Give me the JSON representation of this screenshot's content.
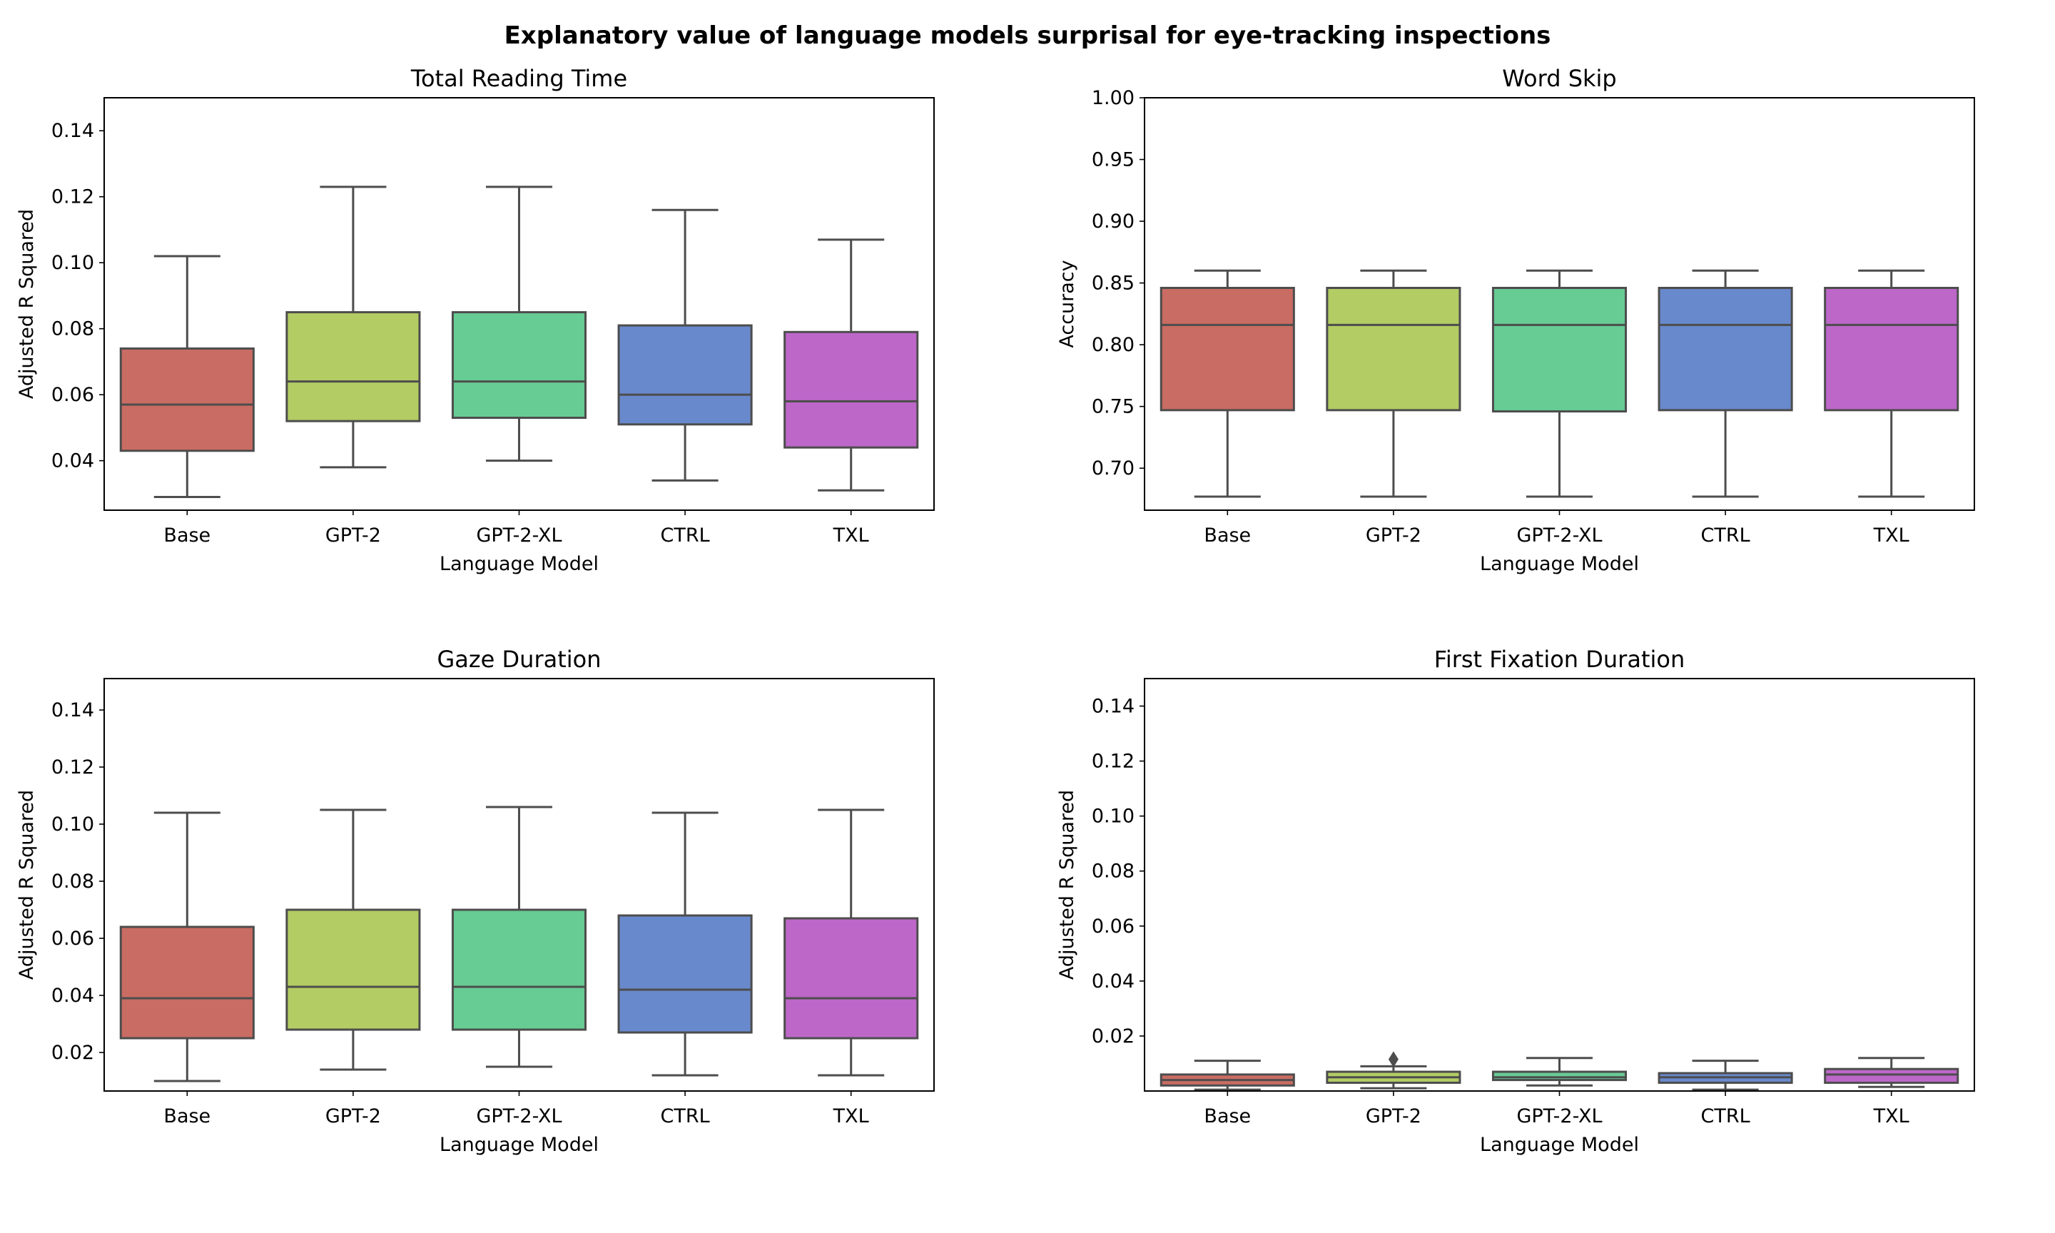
{
  "figure": {
    "title": "Explanatory value of  language models surprisal for eye-tracking inspections"
  },
  "colors": {
    "Base": "#c96c63",
    "GPT-2": "#b3cc64",
    "GPT-2-XL": "#67cb94",
    "CTRL": "#6889cc",
    "TXL": "#bd67c9",
    "line": "#4d4d4d"
  },
  "chart_data": [
    {
      "type": "box",
      "title": "Total Reading Time",
      "xlabel": "Language Model",
      "ylabel": "Adjusted R Squared",
      "categories": [
        "Base",
        "GPT-2",
        "GPT-2-XL",
        "CTRL",
        "TXL"
      ],
      "ylim": [
        0.025,
        0.15
      ],
      "yticks": [
        0.04,
        0.06,
        0.08,
        0.1,
        0.12,
        0.14
      ],
      "ytick_labels": [
        "0.04",
        "0.06",
        "0.08",
        "0.10",
        "0.12",
        "0.14"
      ],
      "boxes": [
        {
          "category": "Base",
          "whisker_low": 0.029,
          "q1": 0.043,
          "median": 0.057,
          "q3": 0.074,
          "whisker_high": 0.102
        },
        {
          "category": "GPT-2",
          "whisker_low": 0.038,
          "q1": 0.052,
          "median": 0.064,
          "q3": 0.085,
          "whisker_high": 0.123
        },
        {
          "category": "GPT-2-XL",
          "whisker_low": 0.04,
          "q1": 0.053,
          "median": 0.064,
          "q3": 0.085,
          "whisker_high": 0.123
        },
        {
          "category": "CTRL",
          "whisker_low": 0.034,
          "q1": 0.051,
          "median": 0.06,
          "q3": 0.081,
          "whisker_high": 0.116
        },
        {
          "category": "TXL",
          "whisker_low": 0.031,
          "q1": 0.044,
          "median": 0.058,
          "q3": 0.079,
          "whisker_high": 0.107
        }
      ]
    },
    {
      "type": "box",
      "title": "Word Skip",
      "xlabel": "Language Model",
      "ylabel": "Accuracy",
      "categories": [
        "Base",
        "GPT-2",
        "GPT-2-XL",
        "CTRL",
        "TXL"
      ],
      "ylim": [
        0.666,
        1.0
      ],
      "yticks": [
        0.7,
        0.75,
        0.8,
        0.85,
        0.9,
        0.95,
        1.0
      ],
      "ytick_labels": [
        "0.70",
        "0.75",
        "0.80",
        "0.85",
        "0.90",
        "0.95",
        "1.00"
      ],
      "boxes": [
        {
          "category": "Base",
          "whisker_low": 0.677,
          "q1": 0.747,
          "median": 0.816,
          "q3": 0.846,
          "whisker_high": 0.86
        },
        {
          "category": "GPT-2",
          "whisker_low": 0.677,
          "q1": 0.747,
          "median": 0.816,
          "q3": 0.846,
          "whisker_high": 0.86
        },
        {
          "category": "GPT-2-XL",
          "whisker_low": 0.677,
          "q1": 0.746,
          "median": 0.816,
          "q3": 0.846,
          "whisker_high": 0.86
        },
        {
          "category": "CTRL",
          "whisker_low": 0.677,
          "q1": 0.747,
          "median": 0.816,
          "q3": 0.846,
          "whisker_high": 0.86
        },
        {
          "category": "TXL",
          "whisker_low": 0.677,
          "q1": 0.747,
          "median": 0.816,
          "q3": 0.846,
          "whisker_high": 0.86
        }
      ]
    },
    {
      "type": "box",
      "title": "Gaze Duration",
      "xlabel": "Language Model",
      "ylabel": "Adjusted R Squared",
      "categories": [
        "Base",
        "GPT-2",
        "GPT-2-XL",
        "CTRL",
        "TXL"
      ],
      "ylim": [
        0.0065,
        0.151
      ],
      "yticks": [
        0.02,
        0.04,
        0.06,
        0.08,
        0.1,
        0.12,
        0.14
      ],
      "ytick_labels": [
        "0.02",
        "0.04",
        "0.06",
        "0.08",
        "0.10",
        "0.12",
        "0.14"
      ],
      "boxes": [
        {
          "category": "Base",
          "whisker_low": 0.01,
          "q1": 0.025,
          "median": 0.039,
          "q3": 0.064,
          "whisker_high": 0.104
        },
        {
          "category": "GPT-2",
          "whisker_low": 0.014,
          "q1": 0.028,
          "median": 0.043,
          "q3": 0.07,
          "whisker_high": 0.105
        },
        {
          "category": "GPT-2-XL",
          "whisker_low": 0.015,
          "q1": 0.028,
          "median": 0.043,
          "q3": 0.07,
          "whisker_high": 0.106
        },
        {
          "category": "CTRL",
          "whisker_low": 0.012,
          "q1": 0.027,
          "median": 0.042,
          "q3": 0.068,
          "whisker_high": 0.104
        },
        {
          "category": "TXL",
          "whisker_low": 0.012,
          "q1": 0.025,
          "median": 0.039,
          "q3": 0.067,
          "whisker_high": 0.105
        }
      ]
    },
    {
      "type": "box",
      "title": "First Fixation Duration",
      "xlabel": "Language Model",
      "ylabel": "Adjusted R Squared",
      "categories": [
        "Base",
        "GPT-2",
        "GPT-2-XL",
        "CTRL",
        "TXL"
      ],
      "ylim": [
        0.0,
        0.15
      ],
      "yticks": [
        0.02,
        0.04,
        0.06,
        0.08,
        0.1,
        0.12,
        0.14
      ],
      "ytick_labels": [
        "0.02",
        "0.04",
        "0.06",
        "0.08",
        "0.10",
        "0.12",
        "0.14"
      ],
      "boxes": [
        {
          "category": "Base",
          "whisker_low": 0.0005,
          "q1": 0.002,
          "median": 0.004,
          "q3": 0.006,
          "whisker_high": 0.011
        },
        {
          "category": "GPT-2",
          "whisker_low": 0.001,
          "q1": 0.003,
          "median": 0.005,
          "q3": 0.007,
          "whisker_high": 0.009,
          "outliers": [
            0.0115
          ]
        },
        {
          "category": "GPT-2-XL",
          "whisker_low": 0.002,
          "q1": 0.004,
          "median": 0.005,
          "q3": 0.007,
          "whisker_high": 0.012
        },
        {
          "category": "CTRL",
          "whisker_low": 0.0005,
          "q1": 0.003,
          "median": 0.005,
          "q3": 0.0065,
          "whisker_high": 0.011
        },
        {
          "category": "TXL",
          "whisker_low": 0.0015,
          "q1": 0.003,
          "median": 0.006,
          "q3": 0.008,
          "whisker_high": 0.012
        }
      ]
    }
  ]
}
